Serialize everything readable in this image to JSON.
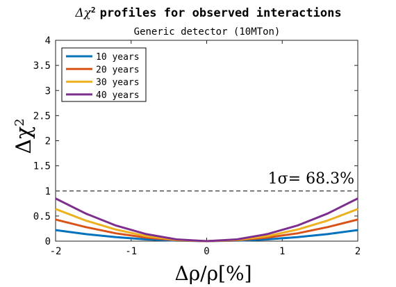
{
  "chart_data": {
    "type": "line",
    "title": "Δχ² profiles for observed interactions",
    "title_main": "profiles for observed interactions",
    "title_symbol": "Δχ",
    "title_superscript": "2",
    "subtitle": "Generic detector (10MTon)",
    "xlabel": "Δρ/ρ[%]",
    "ylabel": "Δχ²",
    "ylabel_symbol": "Δχ",
    "ylabel_superscript": "2",
    "xlim": [
      -2,
      2
    ],
    "ylim": [
      0,
      4
    ],
    "xticks": [
      -2,
      -1,
      0,
      1,
      2
    ],
    "xtick_labels": [
      "-2",
      "-1",
      "0",
      "1",
      "2"
    ],
    "yticks": [
      0,
      0.5,
      1,
      1.5,
      2,
      2.5,
      3,
      3.5,
      4
    ],
    "ytick_labels": [
      "0",
      "0.5",
      "1",
      "1.5",
      "2",
      "2.5",
      "3",
      "3.5",
      "4"
    ],
    "grid": false,
    "legend_position": "top-left",
    "x": [
      -2,
      -1.6,
      -1.2,
      -0.8,
      -0.4,
      0,
      0.4,
      0.8,
      1.2,
      1.6,
      2
    ],
    "series": [
      {
        "name": "10 years",
        "color": "#0072BD",
        "values": [
          0.22,
          0.14,
          0.08,
          0.035,
          0.009,
          0,
          0.009,
          0.035,
          0.08,
          0.14,
          0.22
        ]
      },
      {
        "name": "20 years",
        "color": "#D95319",
        "values": [
          0.43,
          0.28,
          0.155,
          0.07,
          0.017,
          0,
          0.017,
          0.07,
          0.155,
          0.28,
          0.43
        ]
      },
      {
        "name": "30 years",
        "color": "#EDB120",
        "values": [
          0.64,
          0.41,
          0.23,
          0.1,
          0.026,
          0,
          0.026,
          0.1,
          0.23,
          0.41,
          0.64
        ]
      },
      {
        "name": "40 years",
        "color": "#7E2F8E",
        "values": [
          0.85,
          0.55,
          0.31,
          0.14,
          0.035,
          0,
          0.035,
          0.14,
          0.31,
          0.55,
          0.85
        ]
      }
    ],
    "reference_line": {
      "y": 1,
      "style": "dashed",
      "color": "#555555",
      "label": "1σ= 68.3%"
    }
  }
}
